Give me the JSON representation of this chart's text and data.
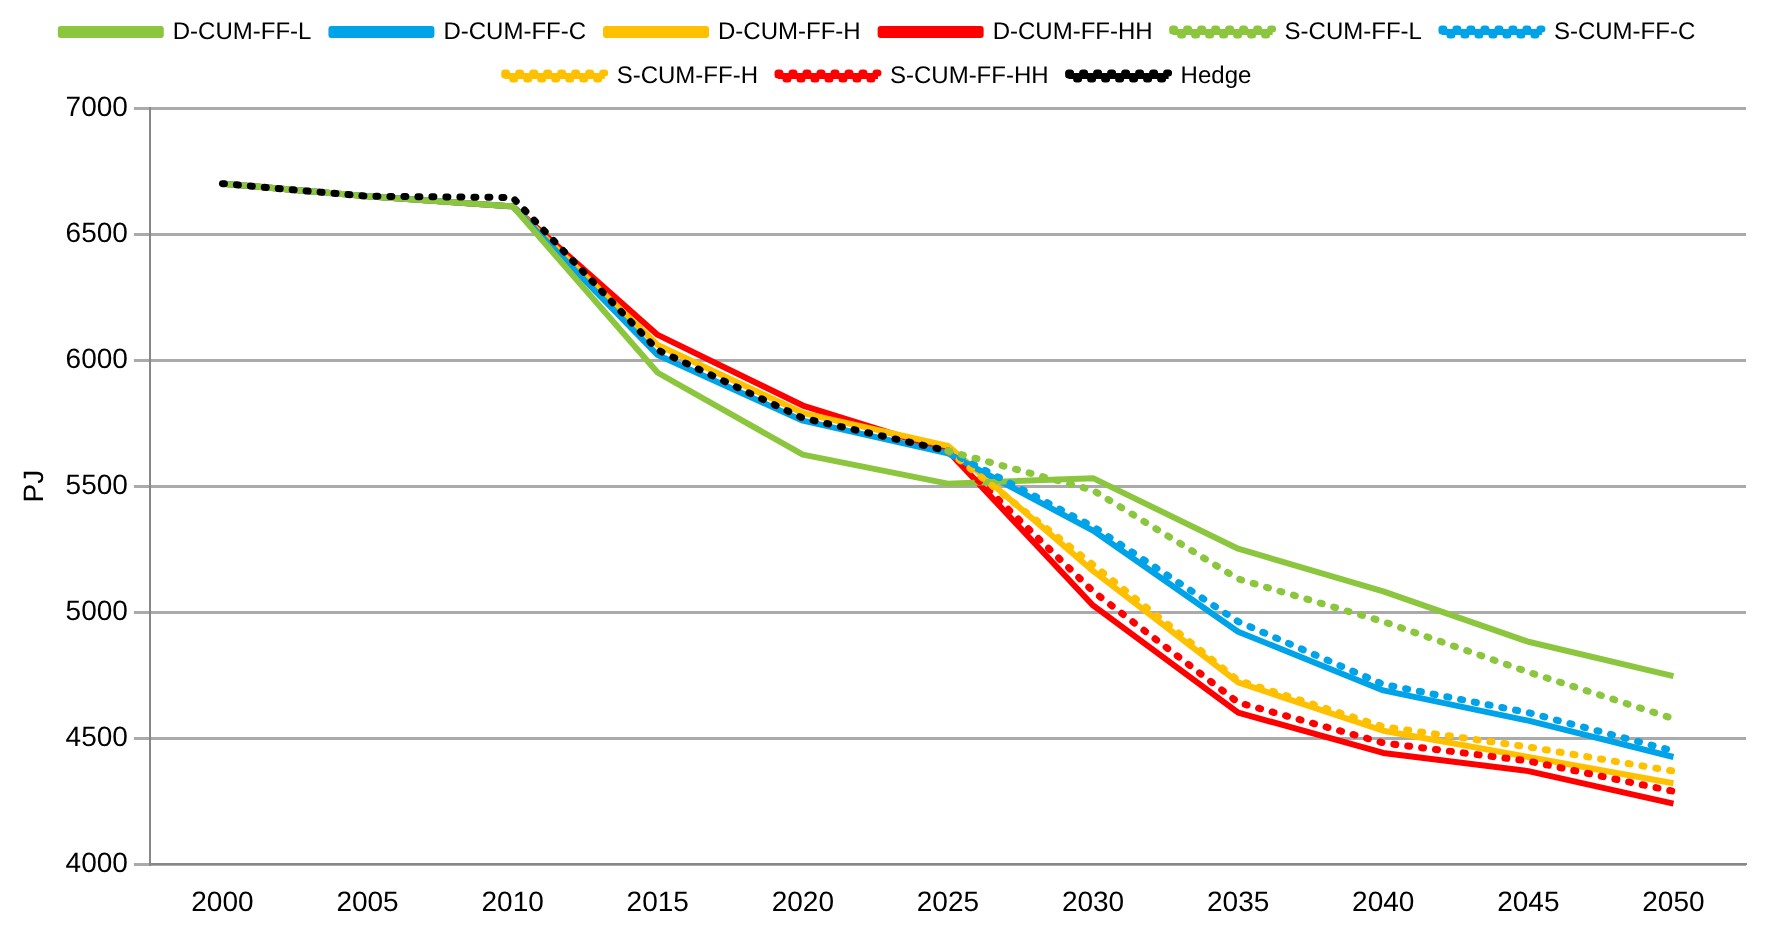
{
  "chart_data": {
    "type": "line",
    "ylabel": "PJ",
    "categories": [
      "2000",
      "2005",
      "2010",
      "2015",
      "2020",
      "2025",
      "2030",
      "2035",
      "2040",
      "2045",
      "2050"
    ],
    "ylim": [
      4000,
      7000
    ],
    "yticks": [
      4000,
      4500,
      5000,
      5500,
      6000,
      6500,
      7000
    ],
    "grid": "y",
    "legend": "top",
    "marker": "none",
    "series": [
      {
        "name": "D-CUM-FF-L",
        "color": "#8cc63f",
        "line_style": "solid",
        "values": [
          6700,
          6650,
          6610,
          5950,
          5625,
          5510,
          5532,
          5252,
          5083,
          4883,
          4747
        ]
      },
      {
        "name": "D-CUM-FF-C",
        "color": "#00a2e8",
        "line_style": "solid",
        "values": [
          6700,
          6650,
          6610,
          6020,
          5760,
          5630,
          5324,
          4923,
          4690,
          4570,
          4426
        ]
      },
      {
        "name": "D-CUM-FF-H",
        "color": "#ffc000",
        "line_style": "solid",
        "values": [
          6700,
          6650,
          6610,
          6060,
          5790,
          5660,
          5164,
          4722,
          4530,
          4426,
          4322
        ]
      },
      {
        "name": "D-CUM-FF-HH",
        "color": "#ff0000",
        "line_style": "solid",
        "values": [
          6700,
          6650,
          6610,
          6100,
          5820,
          5640,
          5027,
          4602,
          4442,
          4370,
          4241
        ]
      },
      {
        "name": "S-CUM-FF-L",
        "color": "#8cc63f",
        "line_style": "dotted",
        "values": [
          null,
          null,
          null,
          null,
          null,
          5640,
          5484,
          5132,
          4963,
          4763,
          4578
        ]
      },
      {
        "name": "S-CUM-FF-C",
        "color": "#00a2e8",
        "line_style": "dotted",
        "values": [
          null,
          null,
          null,
          null,
          null,
          5640,
          5340,
          4963,
          4714,
          4602,
          4450
        ]
      },
      {
        "name": "S-CUM-FF-H",
        "color": "#ffc000",
        "line_style": "dotted",
        "values": [
          null,
          null,
          null,
          null,
          null,
          5640,
          5188,
          4730,
          4546,
          4466,
          4370
        ]
      },
      {
        "name": "S-CUM-FF-HH",
        "color": "#ff0000",
        "line_style": "dotted",
        "values": [
          null,
          null,
          null,
          null,
          null,
          5640,
          5083,
          4642,
          4482,
          4410,
          4290
        ]
      },
      {
        "name": "Hedge",
        "color": "#000000",
        "line_style": "dotted",
        "values": [
          6700,
          6650,
          6645,
          6040,
          5770,
          5640,
          null,
          null,
          null,
          null,
          null
        ]
      }
    ]
  }
}
